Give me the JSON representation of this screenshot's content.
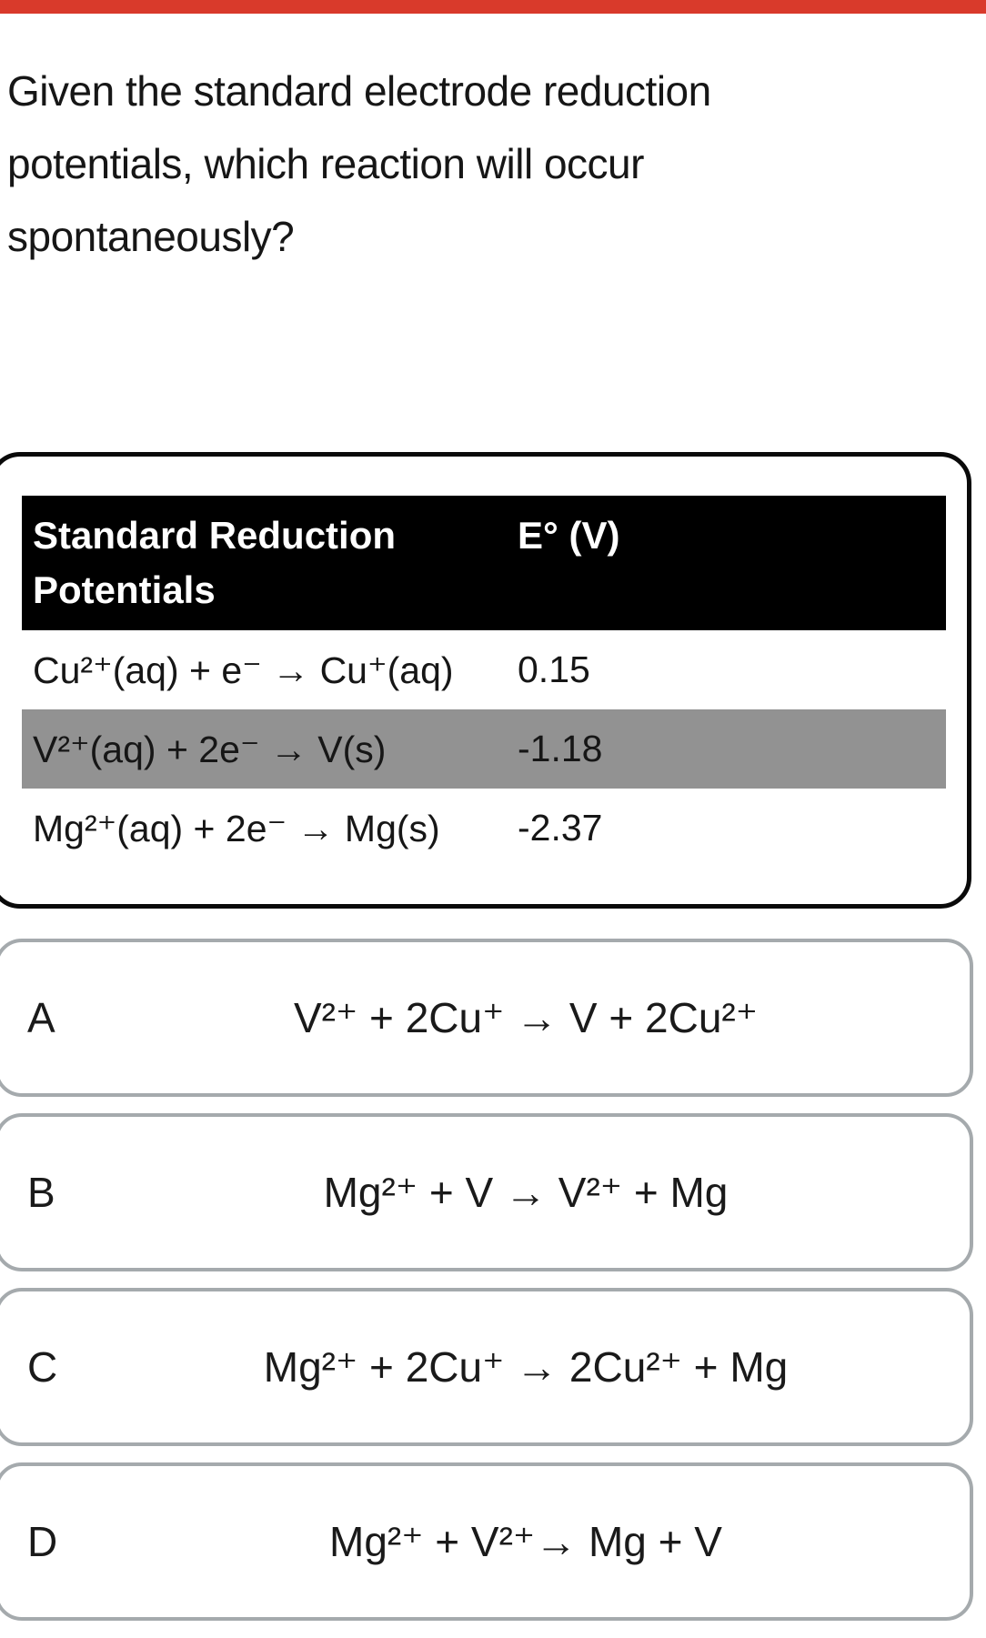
{
  "question": "Given the standard electrode reduction potentials, which reaction will occur spontaneously?",
  "colors": {
    "top_bar_red": "#d93a2b",
    "table_header_bg": "#000000",
    "highlight_row_gray": "#929292",
    "option_border_gray": "#a5aaad"
  },
  "table": {
    "col1_header": "Standard Reduction Potentials",
    "col2_header": "E° (V)",
    "rows": [
      {
        "reaction": "Cu²⁺(aq) + e⁻ → Cu⁺(aq)",
        "potential": "0.15",
        "highlighted": false
      },
      {
        "reaction": "V²⁺(aq) + 2e⁻ → V(s)",
        "potential": "-1.18",
        "highlighted": true
      },
      {
        "reaction": "Mg²⁺(aq) + 2e⁻ → Mg(s)",
        "potential": "-2.37",
        "highlighted": false
      }
    ]
  },
  "options": [
    {
      "letter": "A",
      "equation": "V²⁺ + 2Cu⁺ → V + 2Cu²⁺"
    },
    {
      "letter": "B",
      "equation": "Mg²⁺ + V → V²⁺ + Mg"
    },
    {
      "letter": "C",
      "equation": "Mg²⁺ + 2Cu⁺ → 2Cu²⁺ + Mg"
    },
    {
      "letter": "D",
      "equation": "Mg²⁺ + V²⁺→ Mg + V"
    }
  ]
}
